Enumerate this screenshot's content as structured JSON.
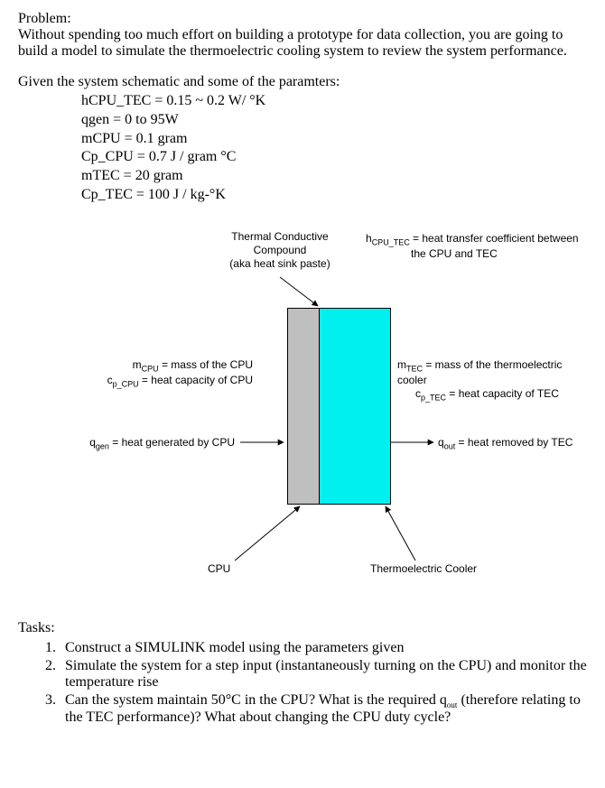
{
  "problem": {
    "heading": "Problem:",
    "text": "Without spending too much effort on building a prototype for data collection, you are going to build a model to simulate the thermoelectric cooling system to review the system performance."
  },
  "given": {
    "intro": "Given the system schematic and some of the paramters:",
    "params": {
      "hCPU_TEC": "hCPU_TEC = 0.15 ~ 0.2 W/ °K",
      "qgen": "qgen = 0 to 95W",
      "mCPU": "mCPU = 0.1 gram",
      "Cp_CPU": "Cp_CPU = 0.7 J / gram °C",
      "mTEC": "mTEC = 20 gram",
      "Cp_TEC": "Cp_TEC = 100 J / kg-°K"
    }
  },
  "diagram": {
    "colors": {
      "cpu_fill": "#bfbfbf",
      "tec_fill": "#00f0f0",
      "stroke": "#000000",
      "bg": "#ffffff"
    },
    "labels": {
      "compound_l1": "Thermal Conductive",
      "compound_l2": "Compound",
      "compound_l3": "(aka heat sink paste)",
      "hCPU_TEC_l1_html": "h<sub>CPU_TEC</sub> = heat transfer coefficient between",
      "hCPU_TEC_l2": "the CPU and TEC",
      "mCPU_html": "m<sub>CPU</sub> = mass of the CPU",
      "cpCPU_html": "c<sub>p_CPU</sub> = heat capacity of CPU",
      "mTEC_html": "m<sub>TEC</sub> = mass of the thermoelectric cooler",
      "cpTEC_html": "c<sub>p_TEC</sub> = heat capacity of TEC",
      "qgen_html": "q<sub>gen</sub> = heat generated by CPU",
      "qout_html": "q<sub>out</sub> = heat removed by TEC",
      "cpu": "CPU",
      "tec": "Thermoelectric Cooler"
    }
  },
  "tasks": {
    "heading": "Tasks:",
    "items": {
      "t1": "Construct a SIMULINK model using the parameters given",
      "t2": "Simulate the system for a step input (instantaneously turning on the CPU) and monitor the temperature rise",
      "t3_html": "Can the system maintain 50°C in the CPU? What is the required q<sub>out</sub> (therefore relating to the TEC performance)? What about changing the CPU duty cycle?"
    }
  }
}
